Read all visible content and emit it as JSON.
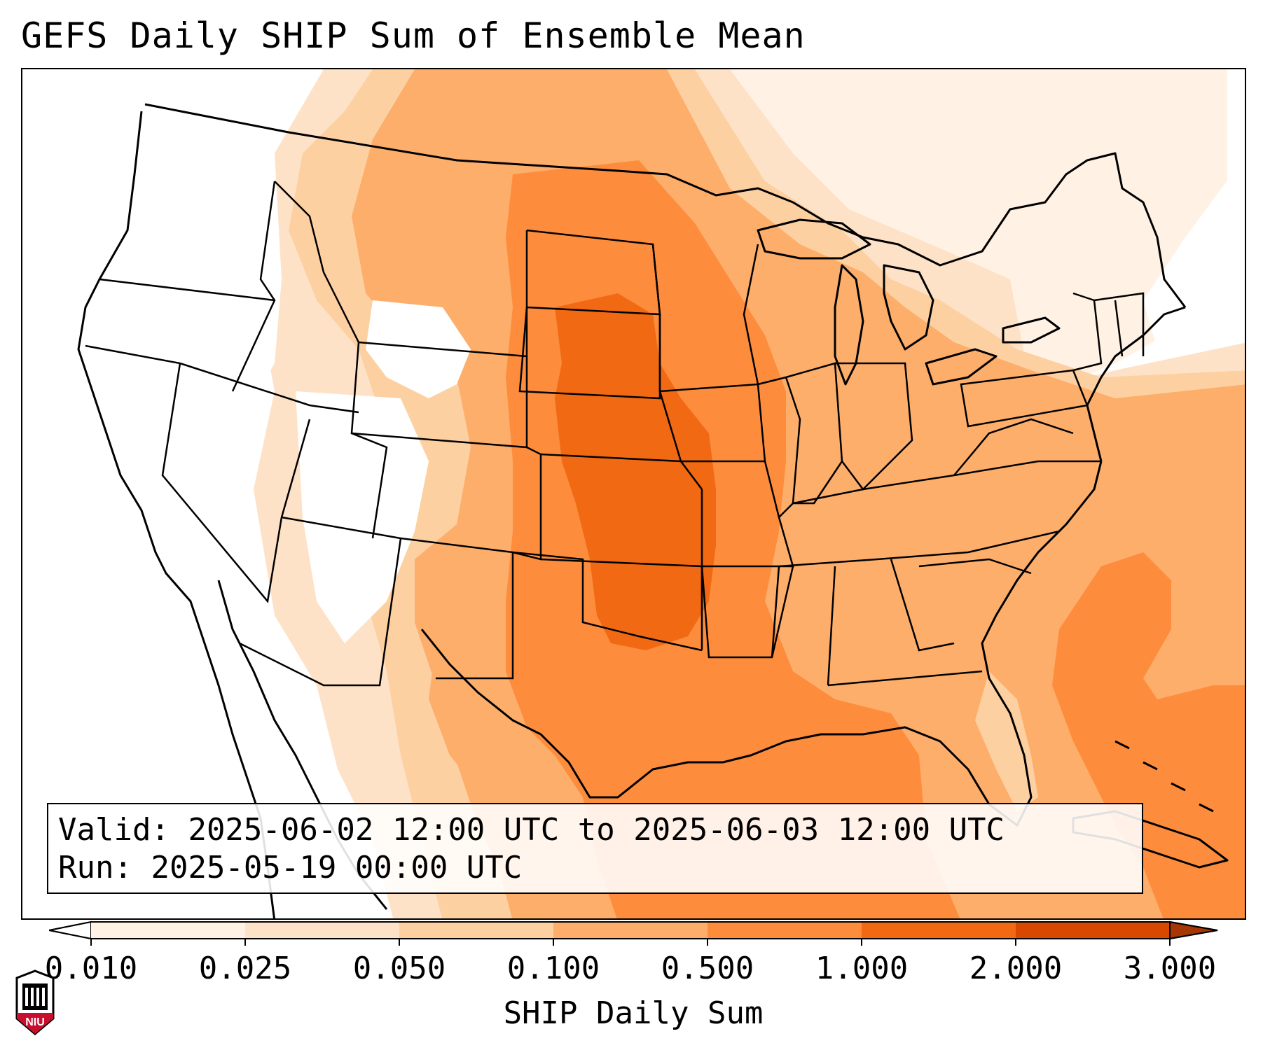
{
  "title": "GEFS Daily SHIP Sum of Ensemble Mean",
  "info": {
    "valid_label": "Valid:",
    "valid_value": "2025-06-02 12:00 UTC to 2025-06-03 12:00 UTC",
    "run_label": "Run:",
    "run_value": "2025-05-19 00:00 UTC"
  },
  "colorbar": {
    "label": "SHIP Daily Sum",
    "ticks": [
      "0.010",
      "0.025",
      "0.050",
      "0.100",
      "0.500",
      "1.000",
      "2.000",
      "3.000"
    ],
    "colors": [
      "#fff1e4",
      "#fee2c7",
      "#fdd0a2",
      "#fdae6b",
      "#fd8d3c",
      "#f16913",
      "#d94801"
    ],
    "under_color": "#ffffff",
    "over_color": "#a63603"
  },
  "logo": {
    "text": "NIU",
    "color": "#c8102e"
  },
  "map": {
    "region": "Contiguous United States",
    "field_colors": {
      "white": "#ffffff",
      "very_light": "#fff1e4",
      "light": "#fee2c7",
      "light_mid": "#fdd0a2",
      "mid": "#fdae6b",
      "mid_dark": "#fd8d3c",
      "dark": "#f16913"
    }
  }
}
